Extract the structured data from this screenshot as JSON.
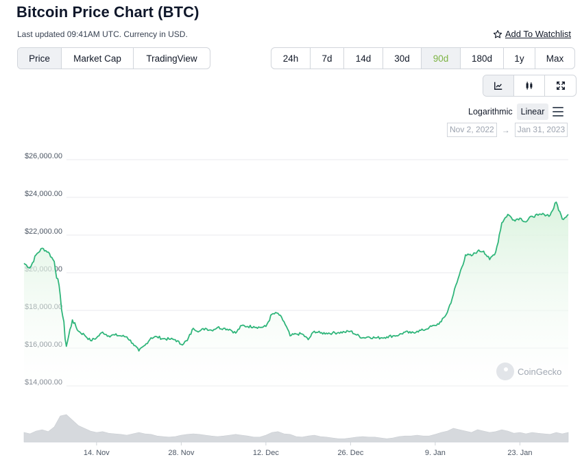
{
  "header": {
    "title": "Bitcoin Price Chart (BTC)",
    "subtitle": "Last updated 09:41AM UTC. Currency in USD.",
    "watchlist_label": "Add To Watchlist",
    "watchlist_icon": "star-outline-icon"
  },
  "view_tabs": [
    {
      "label": "Price",
      "active": true
    },
    {
      "label": "Market Cap",
      "active": false
    },
    {
      "label": "TradingView",
      "active": false
    }
  ],
  "range_tabs": [
    {
      "label": "24h",
      "active": false
    },
    {
      "label": "7d",
      "active": false
    },
    {
      "label": "14d",
      "active": false
    },
    {
      "label": "30d",
      "active": false
    },
    {
      "label": "90d",
      "active": true
    },
    {
      "label": "180d",
      "active": false
    },
    {
      "label": "1y",
      "active": false
    },
    {
      "label": "Max",
      "active": false
    }
  ],
  "chart_type_icons": [
    "line-chart-icon",
    "candlestick-icon",
    "fullscreen-icon"
  ],
  "scale": {
    "logarithmic_label": "Logarithmic",
    "linear_label": "Linear",
    "active": "Linear",
    "menu_icon": "hamburger-menu-icon"
  },
  "date_range": {
    "from": "Nov 2, 2022",
    "to": "Jan 31, 2023",
    "arrow": "→"
  },
  "watermark": {
    "text": "CoinGecko",
    "icon": "coingecko-logo-icon"
  },
  "colors": {
    "accent_green": "#7cb342",
    "line": "#2fb57a",
    "area_top": "#d9f2dd",
    "volume": "#d6d9dd",
    "grid": "#e8eaed"
  },
  "chart_data": {
    "type": "area",
    "title": "Bitcoin Price Chart (BTC)",
    "xlabel": "",
    "ylabel": "",
    "x_ticks": [
      "14. Nov",
      "28. Nov",
      "12. Dec",
      "26. Dec",
      "9. Jan",
      "23. Jan"
    ],
    "y_ticks": [
      "$14,000.00",
      "$16,000.00",
      "$18,000.00",
      "$20,000.00",
      "$22,000.00",
      "$24,000.00",
      "$26,000.00"
    ],
    "y_tick_values": [
      14000,
      16000,
      18000,
      20000,
      22000,
      24000,
      26000
    ],
    "ylim": [
      12000,
      26000
    ],
    "xlim": [
      "2022-11-02",
      "2023-01-31"
    ],
    "grid": true,
    "legend": "none",
    "series": [
      {
        "values": [
          [
            "2022-11-02",
            20500
          ],
          [
            "2022-11-03",
            20250
          ],
          [
            "2022-11-04",
            20950
          ],
          [
            "2022-11-05",
            21300
          ],
          [
            "2022-11-06",
            21100
          ],
          [
            "2022-11-07",
            20600
          ],
          [
            "2022-11-08",
            18800
          ],
          [
            "2022-11-09",
            16100
          ],
          [
            "2022-11-10",
            17500
          ],
          [
            "2022-11-11",
            16900
          ],
          [
            "2022-11-12",
            16700
          ],
          [
            "2022-11-13",
            16400
          ],
          [
            "2022-11-14",
            16550
          ],
          [
            "2022-11-15",
            16850
          ],
          [
            "2022-11-16",
            16650
          ],
          [
            "2022-11-17",
            16700
          ],
          [
            "2022-11-18",
            16650
          ],
          [
            "2022-11-19",
            16600
          ],
          [
            "2022-11-20",
            16250
          ],
          [
            "2022-11-21",
            15850
          ],
          [
            "2022-11-22",
            16150
          ],
          [
            "2022-11-23",
            16550
          ],
          [
            "2022-11-24",
            16600
          ],
          [
            "2022-11-25",
            16500
          ],
          [
            "2022-11-26",
            16480
          ],
          [
            "2022-11-27",
            16450
          ],
          [
            "2022-11-28",
            16200
          ],
          [
            "2022-11-29",
            16400
          ],
          [
            "2022-11-30",
            17050
          ],
          [
            "2022-12-01",
            16900
          ],
          [
            "2022-12-02",
            17050
          ],
          [
            "2022-12-03",
            16950
          ],
          [
            "2022-12-04",
            17100
          ],
          [
            "2022-12-05",
            17050
          ],
          [
            "2022-12-06",
            17000
          ],
          [
            "2022-12-07",
            16800
          ],
          [
            "2022-12-08",
            17200
          ],
          [
            "2022-12-09",
            17150
          ],
          [
            "2022-12-10",
            17150
          ],
          [
            "2022-12-11",
            17100
          ],
          [
            "2022-12-12",
            17150
          ],
          [
            "2022-12-13",
            17800
          ],
          [
            "2022-12-14",
            17850
          ],
          [
            "2022-12-15",
            17400
          ],
          [
            "2022-12-16",
            16650
          ],
          [
            "2022-12-17",
            16750
          ],
          [
            "2022-12-18",
            16750
          ],
          [
            "2022-12-19",
            16450
          ],
          [
            "2022-12-20",
            16900
          ],
          [
            "2022-12-21",
            16800
          ],
          [
            "2022-12-22",
            16800
          ],
          [
            "2022-12-23",
            16800
          ],
          [
            "2022-12-24",
            16830
          ],
          [
            "2022-12-25",
            16850
          ],
          [
            "2022-12-26",
            16900
          ],
          [
            "2022-12-27",
            16700
          ],
          [
            "2022-12-28",
            16550
          ],
          [
            "2022-12-29",
            16600
          ],
          [
            "2022-12-30",
            16550
          ],
          [
            "2022-12-31",
            16550
          ],
          [
            "2023-01-01",
            16600
          ],
          [
            "2023-01-02",
            16650
          ],
          [
            "2023-01-03",
            16700
          ],
          [
            "2023-01-04",
            16850
          ],
          [
            "2023-01-05",
            16800
          ],
          [
            "2023-01-06",
            16900
          ],
          [
            "2023-01-07",
            16950
          ],
          [
            "2023-01-08",
            17100
          ],
          [
            "2023-01-09",
            17200
          ],
          [
            "2023-01-10",
            17400
          ],
          [
            "2023-01-11",
            17900
          ],
          [
            "2023-01-12",
            18850
          ],
          [
            "2023-01-13",
            19900
          ],
          [
            "2023-01-14",
            20950
          ],
          [
            "2023-01-15",
            20900
          ],
          [
            "2023-01-16",
            21150
          ],
          [
            "2023-01-17",
            21150
          ],
          [
            "2023-01-18",
            20700
          ],
          [
            "2023-01-19",
            21100
          ],
          [
            "2023-01-20",
            22650
          ],
          [
            "2023-01-21",
            23100
          ],
          [
            "2023-01-22",
            22800
          ],
          [
            "2023-01-23",
            22900
          ],
          [
            "2023-01-24",
            22700
          ],
          [
            "2023-01-25",
            23000
          ],
          [
            "2023-01-26",
            23050
          ],
          [
            "2023-01-27",
            23100
          ],
          [
            "2023-01-28",
            23050
          ],
          [
            "2023-01-29",
            23750
          ],
          [
            "2023-01-30",
            22850
          ],
          [
            "2023-01-31",
            23100
          ]
        ]
      }
    ],
    "volume_relative": [
      0.35,
      0.3,
      0.4,
      0.45,
      0.38,
      0.55,
      0.95,
      1.0,
      0.8,
      0.6,
      0.5,
      0.4,
      0.35,
      0.38,
      0.32,
      0.3,
      0.28,
      0.25,
      0.3,
      0.35,
      0.3,
      0.28,
      0.22,
      0.2,
      0.18,
      0.2,
      0.25,
      0.28,
      0.3,
      0.28,
      0.25,
      0.22,
      0.2,
      0.22,
      0.25,
      0.28,
      0.25,
      0.22,
      0.18,
      0.18,
      0.25,
      0.35,
      0.38,
      0.3,
      0.28,
      0.2,
      0.18,
      0.22,
      0.25,
      0.2,
      0.18,
      0.15,
      0.12,
      0.12,
      0.15,
      0.18,
      0.2,
      0.18,
      0.18,
      0.15,
      0.12,
      0.15,
      0.2,
      0.22,
      0.22,
      0.25,
      0.22,
      0.22,
      0.28,
      0.35,
      0.4,
      0.5,
      0.45,
      0.4,
      0.35,
      0.45,
      0.4,
      0.35,
      0.38,
      0.45,
      0.4,
      0.32,
      0.35,
      0.3,
      0.35,
      0.32,
      0.3,
      0.28,
      0.35,
      0.3,
      0.35
    ]
  }
}
